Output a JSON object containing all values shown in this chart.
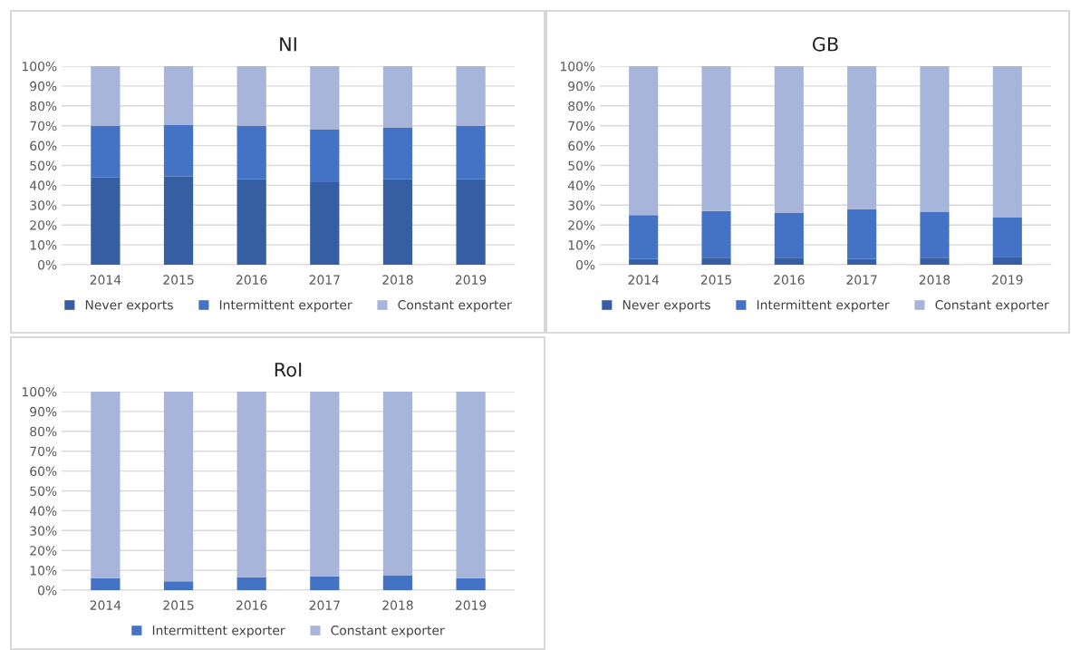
{
  "chart_data": [
    {
      "type": "bar",
      "title": "NI",
      "stacked": true,
      "categories": [
        "2014",
        "2015",
        "2016",
        "2017",
        "2018",
        "2019"
      ],
      "series": [
        {
          "name": "Never exports",
          "color": "#355ea3",
          "values": [
            44,
            44.5,
            43,
            41.5,
            43,
            43
          ]
        },
        {
          "name": "Intermittent exporter",
          "color": "#4472c4",
          "values": [
            26,
            26,
            27,
            26.5,
            26,
            27
          ]
        },
        {
          "name": "Constant exporter",
          "color": "#a7b5da",
          "values": [
            30,
            29.5,
            30,
            32,
            31,
            30
          ]
        }
      ],
      "ylim": [
        0,
        100
      ],
      "yticks": [
        {
          "value": 0,
          "label": "0%"
        },
        {
          "value": 10,
          "label": "10%"
        },
        {
          "value": 20,
          "label": "20%"
        },
        {
          "value": 30,
          "label": "30%"
        },
        {
          "value": 40,
          "label": "40%"
        },
        {
          "value": 50,
          "label": "50%"
        },
        {
          "value": 60,
          "label": "60%"
        },
        {
          "value": 70,
          "label": "70%"
        },
        {
          "value": 80,
          "label": "80%"
        },
        {
          "value": 90,
          "label": "90%"
        },
        {
          "value": 100,
          "label": "100%"
        }
      ],
      "grid": "y",
      "legend": "bottom"
    },
    {
      "type": "bar",
      "title": "GB",
      "stacked": true,
      "categories": [
        "2014",
        "2015",
        "2016",
        "2017",
        "2018",
        "2019"
      ],
      "series": [
        {
          "name": "Never exports",
          "color": "#355ea3",
          "values": [
            3,
            3.5,
            3.5,
            3,
            3.5,
            4
          ]
        },
        {
          "name": "Intermittent exporter",
          "color": "#4472c4",
          "values": [
            22,
            23.5,
            22.5,
            25,
            23,
            20
          ]
        },
        {
          "name": "Constant exporter",
          "color": "#a7b5da",
          "values": [
            75,
            73,
            74,
            72,
            73.5,
            76
          ]
        }
      ],
      "ylim": [
        0,
        100
      ],
      "yticks": [
        {
          "value": 0,
          "label": "0%"
        },
        {
          "value": 10,
          "label": "10%"
        },
        {
          "value": 20,
          "label": "20%"
        },
        {
          "value": 30,
          "label": "30%"
        },
        {
          "value": 40,
          "label": "40%"
        },
        {
          "value": 50,
          "label": "50%"
        },
        {
          "value": 60,
          "label": "60%"
        },
        {
          "value": 70,
          "label": "70%"
        },
        {
          "value": 80,
          "label": "80%"
        },
        {
          "value": 90,
          "label": "90%"
        },
        {
          "value": 100,
          "label": "100%"
        }
      ],
      "grid": "y",
      "legend": "bottom"
    },
    {
      "type": "bar",
      "title": "RoI",
      "stacked": true,
      "categories": [
        "2014",
        "2015",
        "2016",
        "2017",
        "2018",
        "2019"
      ],
      "series": [
        {
          "name": "Intermittent exporter",
          "color": "#4472c4",
          "values": [
            6,
            4.5,
            6.5,
            7,
            7.5,
            6
          ]
        },
        {
          "name": "Constant exporter",
          "color": "#a7b5da",
          "values": [
            94,
            95.5,
            93.5,
            93,
            92.5,
            94
          ]
        }
      ],
      "ylim": [
        0,
        100
      ],
      "yticks": [
        {
          "value": 0,
          "label": "0%"
        },
        {
          "value": 10,
          "label": "10%"
        },
        {
          "value": 20,
          "label": "20%"
        },
        {
          "value": 30,
          "label": "30%"
        },
        {
          "value": 40,
          "label": "40%"
        },
        {
          "value": 50,
          "label": "50%"
        },
        {
          "value": 60,
          "label": "60%"
        },
        {
          "value": 70,
          "label": "70%"
        },
        {
          "value": 80,
          "label": "80%"
        },
        {
          "value": 90,
          "label": "90%"
        },
        {
          "value": 100,
          "label": "100%"
        }
      ],
      "grid": "y",
      "legend": "bottom"
    }
  ]
}
